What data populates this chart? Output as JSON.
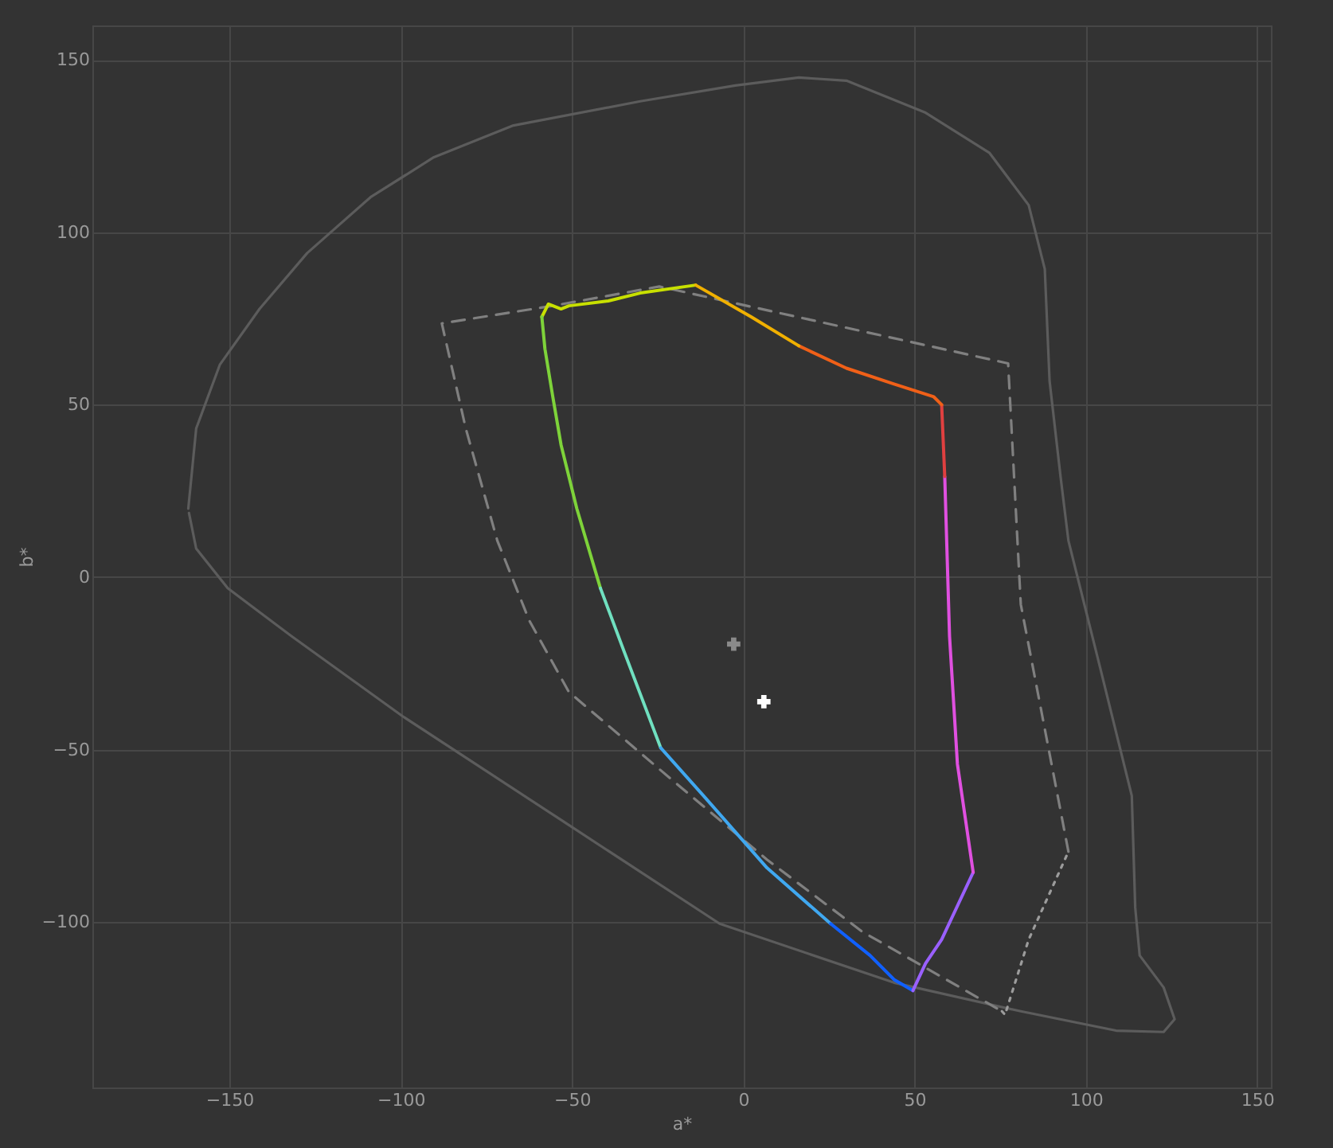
{
  "chart_data": {
    "type": "line",
    "xlabel": "a*",
    "ylabel": "b*",
    "xlim": [
      -190,
      154
    ],
    "ylim": [
      -148,
      160
    ],
    "xticks": [
      -150,
      -100,
      -50,
      0,
      50,
      100,
      150
    ],
    "yticks": [
      -100,
      -50,
      0,
      50,
      100,
      150
    ],
    "grid": true,
    "marker": "none",
    "series": [
      {
        "color": "#5c5c5c",
        "line_style": "solid",
        "x": [
          -162.0,
          -159.7,
          -152.8,
          -141.2,
          -127.3,
          -108.8,
          -90.3,
          -67.1,
          -30.1,
          -2.3,
          16.2,
          30.1,
          53.2,
          71.8,
          83.3,
          88.0,
          89.4,
          92.6,
          94.9,
          104.2,
          113.4,
          114.4,
          115.7,
          122.7,
          125.9,
          122.7,
          108.8,
          81.0,
          44.0,
          -6.9,
          -53.2,
          -99.5,
          -131.9,
          -150.5,
          -159.7,
          -161.8
        ],
        "values": [
          19.9,
          43.1,
          61.6,
          77.8,
          94.0,
          110.2,
          121.8,
          131.0,
          138.0,
          142.6,
          144.9,
          144.0,
          134.7,
          123.1,
          107.9,
          89.4,
          56.9,
          29.2,
          10.6,
          -26.4,
          -63.4,
          -95.8,
          -109.7,
          -119.0,
          -128.2,
          -131.9,
          -131.5,
          -125.9,
          -117.6,
          -100.5,
          -70.4,
          -40.3,
          -17.1,
          -3.2,
          8.3,
          18.6
        ]
      },
      {
        "color": "#808080",
        "line_style": "dashed",
        "x": [
          94.9,
          81.0,
          77.3,
          -24.5,
          -55.6,
          -88.0,
          -81.0,
          -71.8,
          -62.5,
          -50.9,
          -20.8,
          6.9,
          34.7,
          75.5
        ],
        "values": [
          -79.6,
          -7.9,
          62.0,
          84.3,
          78.7,
          73.6,
          43.1,
          10.6,
          -12.5,
          -33.3,
          -58.8,
          -81.9,
          -102.8,
          -125.9
        ]
      },
      {
        "color": "#9c9c9c",
        "line_style": "dotted",
        "x": [
          75.5,
          76.4,
          83.3,
          94.9
        ],
        "values": [
          -125.9,
          -126.9,
          -105.1,
          -79.6
        ]
      },
      {
        "color": "#c8e000",
        "line_style": "solid",
        "x": [
          -13.9,
          -30.1,
          -39.4,
          -50.9,
          -53.2,
          -56.9,
          -58.8
        ],
        "values": [
          84.7,
          82.4,
          80.1,
          78.7,
          77.8,
          79.2,
          75.5
        ]
      },
      {
        "color": "#7ed33a",
        "line_style": "solid",
        "x": [
          -58.8,
          -57.9,
          -55.6,
          -53.2,
          -48.6,
          -41.7
        ],
        "values": [
          75.5,
          66.2,
          52.3,
          38.4,
          19.9,
          -3.2
        ]
      },
      {
        "color": "#70e0c0",
        "line_style": "solid",
        "x": [
          -41.7,
          -34.7,
          -24.1
        ],
        "values": [
          -3.2,
          -21.8,
          -49.5
        ]
      },
      {
        "color": "#40a8f0",
        "line_style": "solid",
        "x": [
          -24.1,
          -11.6,
          6.9,
          25.5
        ],
        "values": [
          -49.5,
          -63.4,
          -84.3,
          -100.5
        ]
      },
      {
        "color": "#1060ff",
        "line_style": "solid",
        "x": [
          25.5,
          37.0,
          44.0,
          49.5
        ],
        "values": [
          -100.5,
          -109.7,
          -116.7,
          -119.9
        ]
      },
      {
        "color": "#9a60ff",
        "line_style": "solid",
        "x": [
          49.5,
          53.2,
          57.9,
          67.1
        ],
        "values": [
          -119.9,
          -112.0,
          -105.1,
          -85.6
        ]
      },
      {
        "color": "#e050e0",
        "line_style": "solid",
        "x": [
          67.1,
          62.5,
          60.2,
          58.8
        ],
        "values": [
          -85.6,
          -54.2,
          -17.1,
          29.2
        ]
      },
      {
        "color": "#e04040",
        "line_style": "solid",
        "x": [
          58.8,
          57.9
        ],
        "values": [
          29.2,
          50.0
        ]
      },
      {
        "color": "#f06018",
        "line_style": "solid",
        "x": [
          57.9,
          55.6,
          44.0,
          30.1,
          16.2
        ],
        "values": [
          50.0,
          52.3,
          56.0,
          60.6,
          67.1
        ]
      },
      {
        "color": "#f0b000",
        "line_style": "solid",
        "x": [
          16.2,
          2.3,
          -13.9
        ],
        "values": [
          67.1,
          75.5,
          84.7
        ]
      },
      {
        "type": "scatter",
        "marker": "cross",
        "color": "#8a8a8a",
        "x": [
          -2.8
        ],
        "values": [
          -19.4
        ]
      },
      {
        "type": "scatter",
        "marker": "cross",
        "color": "#ffffff",
        "x": [
          6.0
        ],
        "values": [
          -36.1
        ]
      }
    ]
  }
}
